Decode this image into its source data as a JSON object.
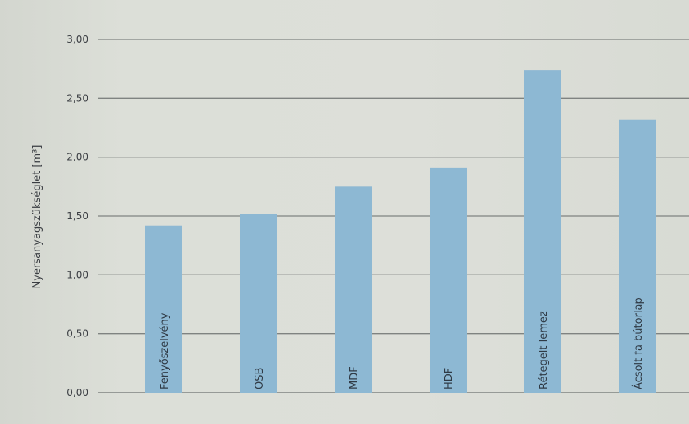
{
  "chart_data": {
    "type": "bar",
    "title": "",
    "xlabel": "",
    "ylabel": "Nyersanyagszükséglet [m³]",
    "ylim": [
      0,
      3.0
    ],
    "yticks": [
      "0,00",
      "0,50",
      "1,00",
      "1,50",
      "2,00",
      "2,50",
      "3,00"
    ],
    "categories": [
      "Fenyőszelvény",
      "OSB",
      "MDF",
      "HDF",
      "Rétegelt lemez",
      "Ácsolt fa bútorlap"
    ],
    "values": [
      1.42,
      1.52,
      1.75,
      1.91,
      2.74,
      2.32
    ],
    "grid": true,
    "bar_color": "#8db8d3",
    "grid_color": "#7f8381",
    "background": "#dcdfd8"
  }
}
